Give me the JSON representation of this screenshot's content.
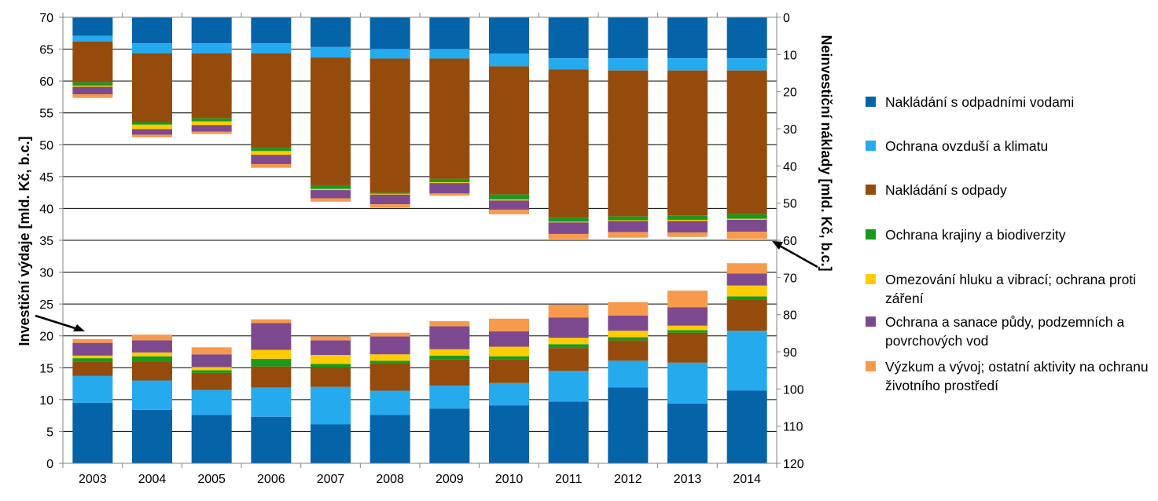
{
  "colors": [
    "#0563a8",
    "#26aaee",
    "#954b0c",
    "#199a1b",
    "#ffcc00",
    "#7d4a8f",
    "#f79a4c"
  ],
  "chart_data": {
    "type": "bar",
    "stacked": true,
    "dual": true,
    "categories": [
      "2003",
      "2004",
      "2005",
      "2006",
      "2007",
      "2008",
      "2009",
      "2010",
      "2011",
      "2012",
      "2013",
      "2014"
    ],
    "left_axis": {
      "label": "Investiční výdaje [mld. Kč, b.c.]",
      "ylim": [
        0,
        70
      ],
      "ticks": [
        "0",
        "5",
        "10",
        "15",
        "20",
        "25",
        "30",
        "35",
        "40",
        "45",
        "50",
        "55",
        "60",
        "65",
        "70"
      ]
    },
    "right_axis": {
      "label": "Neinvestiční náklady [mld. Kč, b.c.]",
      "ylim": [
        0,
        120
      ],
      "reversed": true,
      "ticks": [
        "0",
        "10",
        "20",
        "30",
        "40",
        "50",
        "60",
        "70",
        "80",
        "90",
        "100",
        "110",
        "120"
      ]
    },
    "legend_labels": [
      "Nakládání s odpadními vodami",
      "Ochrana ovzduší a klimatu",
      "Nakládání s odpady",
      "Ochrana krajiny a biodiverzity",
      "Omezování hluku a vibrací; ochrana proti záření",
      "Ochrana a sanace půdy, podzemních a povrchových vod",
      "Výzkum a vývoj; ostatní aktivity na ochranu životního prostředí"
    ],
    "investment_series": [
      {
        "name": "Nakládání s odpadními vodami",
        "values": [
          9.5,
          8.4,
          7.6,
          7.3,
          6.1,
          7.6,
          8.6,
          9.1,
          9.7,
          11.9,
          9.4,
          11.4
        ]
      },
      {
        "name": "Ochrana ovzduší a klimatu",
        "values": [
          4.2,
          4.6,
          3.9,
          4.6,
          5.9,
          3.8,
          3.6,
          3.5,
          4.8,
          4.2,
          6.4,
          9.4
        ]
      },
      {
        "name": "Nakládání s odpady",
        "values": [
          2.3,
          2.9,
          2.7,
          3.3,
          3.0,
          4.3,
          4.1,
          3.7,
          3.6,
          3.2,
          4.7,
          4.9
        ]
      },
      {
        "name": "Ochrana krajiny a biodiverzity",
        "values": [
          0.5,
          0.9,
          0.4,
          1.2,
          0.6,
          0.4,
          0.6,
          0.5,
          0.6,
          0.5,
          0.4,
          0.5
        ]
      },
      {
        "name": "Omezování hluku a vibrací; ochrana proti záření",
        "values": [
          0.4,
          0.6,
          0.5,
          1.4,
          1.4,
          1.0,
          1.0,
          1.5,
          1.0,
          1.0,
          0.7,
          1.7
        ]
      },
      {
        "name": "Ochrana a sanace půdy, podzemních a povrchových vod",
        "values": [
          2.0,
          1.9,
          2.0,
          4.2,
          2.3,
          2.8,
          3.6,
          2.4,
          3.2,
          2.4,
          2.9,
          1.9
        ]
      },
      {
        "name": "Výzkum a vývoj; ostatní aktivity na ochranu životního prostředí",
        "values": [
          0.6,
          0.9,
          1.1,
          0.6,
          0.6,
          0.6,
          0.8,
          2.0,
          2.0,
          2.1,
          2.6,
          1.6
        ]
      }
    ],
    "operating_series": [
      {
        "name": "Nakládání s odpadními vodami",
        "values": [
          5.0,
          7.0,
          7.0,
          7.0,
          8.0,
          8.5,
          8.5,
          9.8,
          11.0,
          11.0,
          11.0,
          11.0
        ]
      },
      {
        "name": "Ochrana ovzduší a klimatu",
        "values": [
          1.5,
          2.7,
          2.7,
          2.7,
          2.8,
          2.6,
          2.6,
          3.4,
          3.0,
          3.3,
          3.3,
          3.3
        ]
      },
      {
        "name": "Nakládání s odpady",
        "values": [
          11.0,
          18.5,
          17.5,
          25.5,
          34.4,
          36.1,
          32.4,
          34.5,
          39.9,
          39.3,
          39.0,
          38.7
        ]
      },
      {
        "name": "Ochrana krajiny a biodiverzity",
        "values": [
          0.9,
          0.7,
          0.8,
          0.8,
          1.0,
          0.3,
          0.9,
          1.3,
          1.1,
          1.0,
          1.2,
          1.2
        ]
      },
      {
        "name": "Omezování hluku a vibrací; ochrana proti záření",
        "values": [
          0.3,
          1.2,
          1.0,
          1.0,
          0.3,
          0.2,
          0.2,
          0.3,
          0.2,
          0.2,
          0.3,
          0.3
        ]
      },
      {
        "name": "Ochrana a sanace půdy, podzemních a povrchových vod",
        "values": [
          2.0,
          1.5,
          1.8,
          2.5,
          2.2,
          2.6,
          2.8,
          2.5,
          3.1,
          3.0,
          3.1,
          3.2
        ]
      },
      {
        "name": "Výzkum a vývoj; ostatní aktivity na ochranu životního prostředí",
        "values": [
          1.0,
          0.7,
          0.6,
          1.0,
          0.9,
          0.9,
          0.6,
          1.2,
          1.4,
          1.5,
          1.2,
          1.9
        ]
      }
    ],
    "grid": true
  }
}
